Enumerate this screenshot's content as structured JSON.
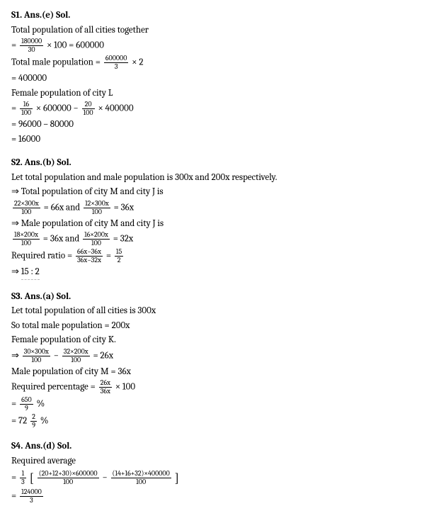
{
  "s1": {
    "header": "S1. Ans.(e) Sol.",
    "l1": "Total population of all cities together",
    "l2a": "=",
    "l2_frac1_num": "180000",
    "l2_frac1_den": "30",
    "l2b": "× 100 = 600000",
    "l3a": "Total male population =",
    "l3_frac_num": "600000",
    "l3_frac_den": "3",
    "l3b": "× 2",
    "l4": "= 400000",
    "l5": "Female population of city L",
    "l6a": "=",
    "l6_frac1_num": "16",
    "l6_frac1_den": "100",
    "l6b": "× 600000 −",
    "l6_frac2_num": "20",
    "l6_frac2_den": "100",
    "l6c": "× 400000",
    "l7": "= 96000 – 80000",
    "l8": "= 16000"
  },
  "s2": {
    "header": "S2. Ans.(b) Sol.",
    "l1": "Let total population and male population is 300x and 200x respectively.",
    "l2": "⇒ Total population of city M and city J is",
    "l3_frac1_num": "22×300x",
    "l3_frac1_den": "100",
    "l3a": "= 66x and",
    "l3_frac2_num": "12×300x",
    "l3_frac2_den": "100",
    "l3b": "= 36x",
    "l4": "⇒ Male population of city M and city J is",
    "l5_frac1_num": "18×200x",
    "l5_frac1_den": "100",
    "l5a": "= 36x  and",
    "l5_frac2_num": "16×200x",
    "l5_frac2_den": "100",
    "l5b": "= 32x",
    "l6a": "Required ratio =",
    "l6_frac1_num": "66x−36x",
    "l6_frac1_den": "36x−32x",
    "l6b": "=",
    "l6_frac2_num": "15",
    "l6_frac2_den": "2",
    "l7a": "⇒",
    "l7b": "15 : 2"
  },
  "s3": {
    "header": "S3. Ans.(a) Sol.",
    "l1": "Let total population of all cities is 300x",
    "l2": "So total male population = 200x",
    "l3": "Female population of city K.",
    "l4a": "⇒",
    "l4_frac1_num": "30×300x",
    "l4_frac1_den": "100",
    "l4b": "−",
    "l4_frac2_num": "32×200x",
    "l4_frac2_den": "100",
    "l4c": "= 26x",
    "l5": "Male population of city M = 36x",
    "l6a": "Required percentage =",
    "l6_frac_num": "26x",
    "l6_frac_den": "36x",
    "l6b": "× 100",
    "l7a": "=",
    "l7_frac_num": "650",
    "l7_frac_den": "9",
    "l7b": "%",
    "l8a": "= 72",
    "l8_frac_num": "2",
    "l8_frac_den": "9",
    "l8b": "%"
  },
  "s4": {
    "header": "S4. Ans.(d) Sol.",
    "l1": "Required average",
    "l2a": "=",
    "l2_frac0_num": "1",
    "l2_frac0_den": "3",
    "l2_lb": "[",
    "l2_frac1_num": "(20+12+30)×600000",
    "l2_frac1_den": "100",
    "l2b": "−",
    "l2_frac2_num": "(14+16+32)×400000",
    "l2_frac2_den": "100",
    "l2_rb": "]",
    "l3a": "=",
    "l3_frac_num": "124000",
    "l3_frac_den": "3"
  }
}
